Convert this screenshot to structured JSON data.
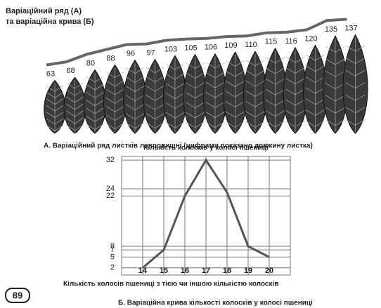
{
  "title_lines": [
    "Варіаційний ряд (А)",
    "та варіаційна крива (Б)"
  ],
  "leaf_series": {
    "values": [
      63,
      68,
      80,
      88,
      96,
      97,
      103,
      105,
      106,
      109,
      110,
      115,
      116,
      120,
      135,
      137
    ],
    "caption": "А. Варіаційний ряд листків лавровишні (цифрами показано довжину  листка)"
  },
  "chart_data": {
    "type": "line",
    "title": "Кількість колосків у колосі пшениці",
    "x_label": "Кількість колосів пшениці з тією чи іншою кількістю колосків",
    "x": [
      14,
      15,
      16,
      17,
      18,
      19,
      20
    ],
    "values": [
      2,
      7,
      22,
      32,
      23,
      8,
      5
    ],
    "color": "#555555",
    "xlim": [
      13,
      21
    ],
    "ylim": [
      0,
      33
    ],
    "xticks": [
      14,
      15,
      16,
      17,
      18,
      19,
      20
    ],
    "yticks": [
      2,
      5,
      7,
      8,
      22,
      24,
      32
    ],
    "grid": true,
    "caption": "Б. Варіаційна крива кількості колосків у колосі пшениці"
  },
  "page_number": "89"
}
